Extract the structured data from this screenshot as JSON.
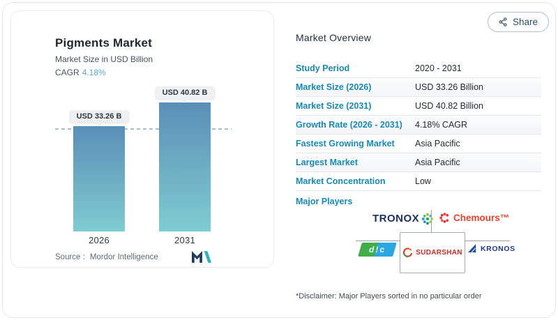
{
  "header": {
    "share_label": "Share"
  },
  "chart_card": {
    "title": "Pigments Market",
    "subtitle": "Market Size in USD Billion",
    "cagr_label": "CAGR",
    "cagr_value": "4.18%",
    "source_label": "Source :",
    "source_name": "Mordor Intelligence"
  },
  "chart_data": {
    "type": "bar",
    "title": "Pigments Market",
    "subtitle": "Market Size in USD Billion",
    "cagr": "4.18%",
    "unit": "USD Billion",
    "categories": [
      "2026",
      "2031"
    ],
    "values": [
      33.26,
      40.82
    ],
    "data_labels": [
      "USD 33.26 B",
      "USD 40.82 B"
    ],
    "reference_line_value": 33.26,
    "ylim": [
      0,
      45
    ],
    "grid": false,
    "bar_gradient_top": "#5a8fb8",
    "bar_gradient_bottom": "#7fccd3"
  },
  "overview": {
    "title": "Market Overview",
    "rows": [
      {
        "label": "Study Period",
        "value": "2020 - 2031"
      },
      {
        "label": "Market Size (2026)",
        "value": "USD 33.26 Billion"
      },
      {
        "label": "Market Size (2031)",
        "value": "USD 40.82 Billion"
      },
      {
        "label": "Growth Rate (2026 - 2031)",
        "value": "4.18% CAGR"
      },
      {
        "label": "Fastest Growing Market",
        "value": "Asia Pacific"
      },
      {
        "label": "Largest Market",
        "value": "Asia Pacific"
      },
      {
        "label": "Market Concentration",
        "value": "Low"
      }
    ],
    "major_players_label": "Major Players",
    "players": [
      {
        "name": "TRONOX",
        "brand_color": "#1b3263"
      },
      {
        "name": "Chemours™",
        "brand_color": "#e8432e"
      },
      {
        "name": "d!c",
        "brand_color": "#2ba8e0"
      },
      {
        "name": "SUDARSHAN",
        "brand_color": "#cf2b24"
      },
      {
        "name": "KRONOS",
        "brand_color": "#1b3c87"
      }
    ]
  },
  "disclaimer": "*Disclaimer: Major Players sorted in no particular order",
  "colors": {
    "accent_label_blue": "#1789b4",
    "cagr_blue": "#58a9cd",
    "navy_text": "#1c2730",
    "dashed_line": "#a7c0cf"
  }
}
